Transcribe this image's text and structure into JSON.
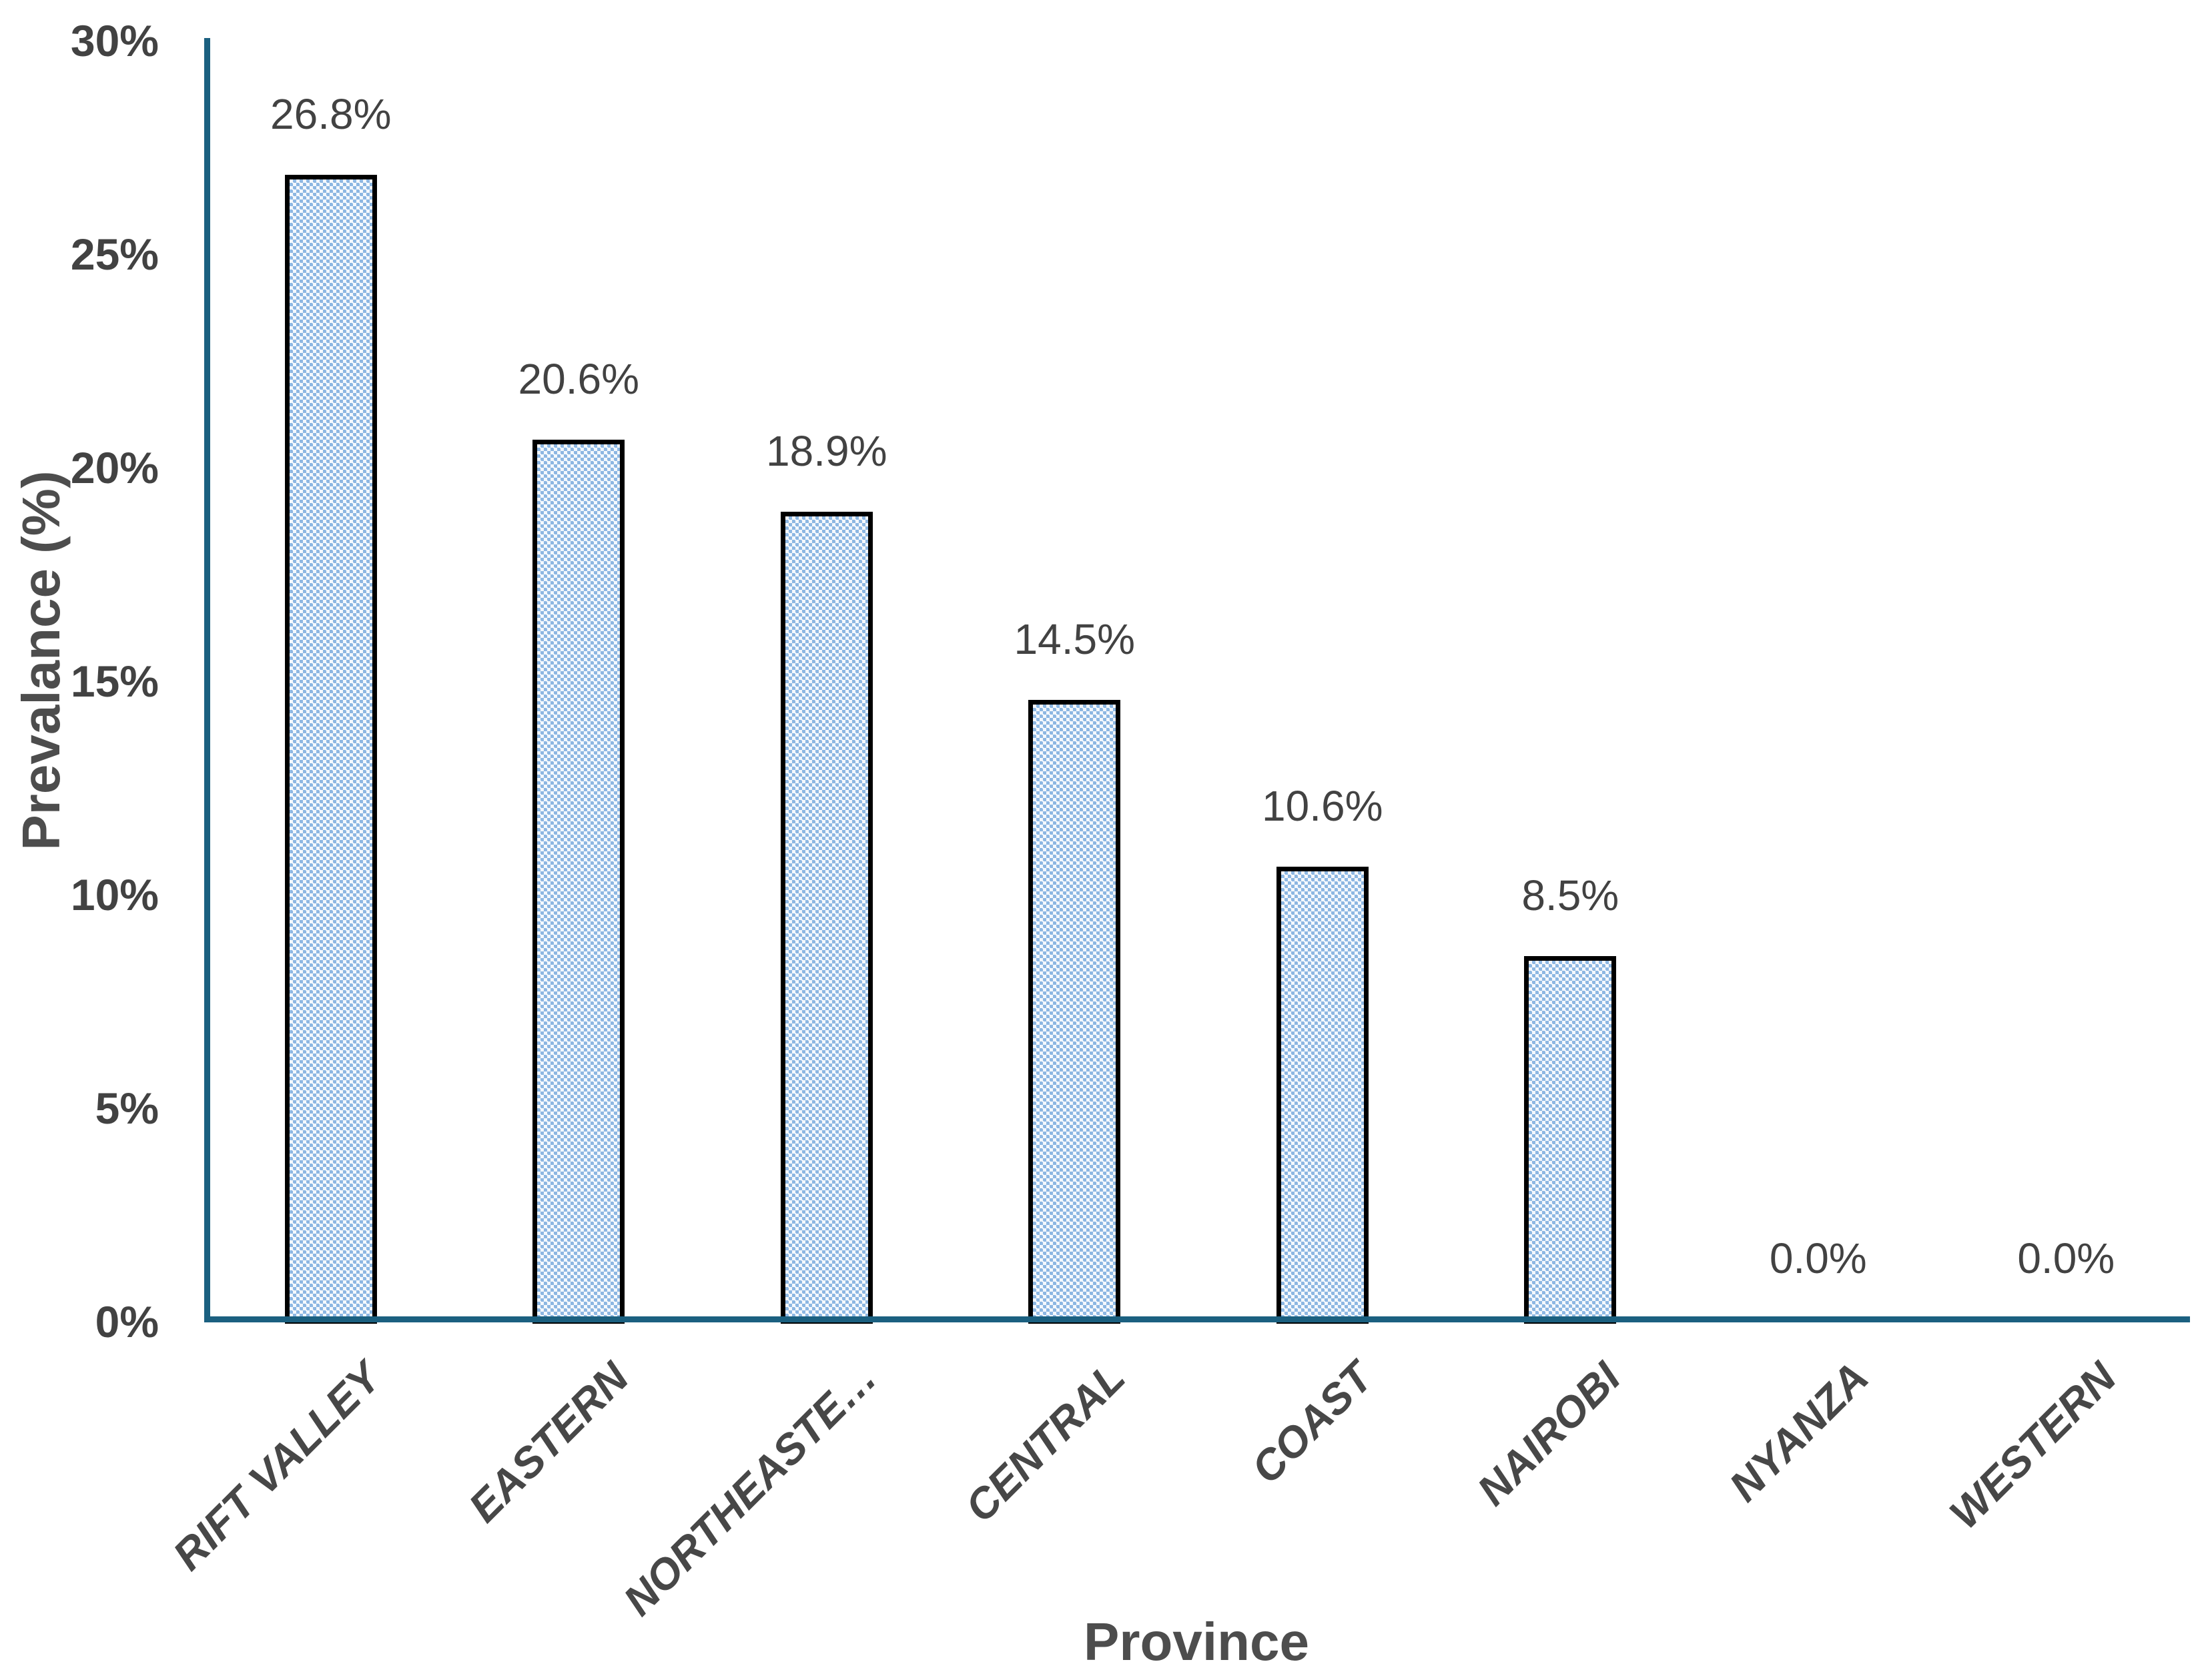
{
  "chart_data": {
    "type": "bar",
    "title": "",
    "xlabel": "Province",
    "ylabel": "Prevalance (%)",
    "categories": [
      "RIFT VALLEY",
      "EASTERN",
      "NORTHEASTE…",
      "CENTRAL",
      "COAST",
      "NAIROBI",
      "NYANZA",
      "WESTERN"
    ],
    "values": [
      26.8,
      20.6,
      18.9,
      14.5,
      10.6,
      8.5,
      0.0,
      0.0
    ],
    "data_labels": [
      "26.8%",
      "20.6%",
      "18.9%",
      "14.5%",
      "10.6%",
      "8.5%",
      "0.0%",
      "0.0%"
    ],
    "ylim": [
      0,
      30
    ],
    "yticks": [
      {
        "value": 0,
        "label": "0%"
      },
      {
        "value": 5,
        "label": "5%"
      },
      {
        "value": 10,
        "label": "10%"
      },
      {
        "value": 15,
        "label": "15%"
      },
      {
        "value": 20,
        "label": "20%"
      },
      {
        "value": 25,
        "label": "25%"
      },
      {
        "value": 30,
        "label": "30%"
      }
    ],
    "grid": "off",
    "legend": "none",
    "colors": {
      "axis_line": "#1B6080",
      "bar_fill_primary": "#8DB7E2",
      "bar_fill_secondary": "#F4F8FD",
      "bar_border": "#000000",
      "label_text": "#424242",
      "title_text": "#4D4D4D"
    }
  }
}
